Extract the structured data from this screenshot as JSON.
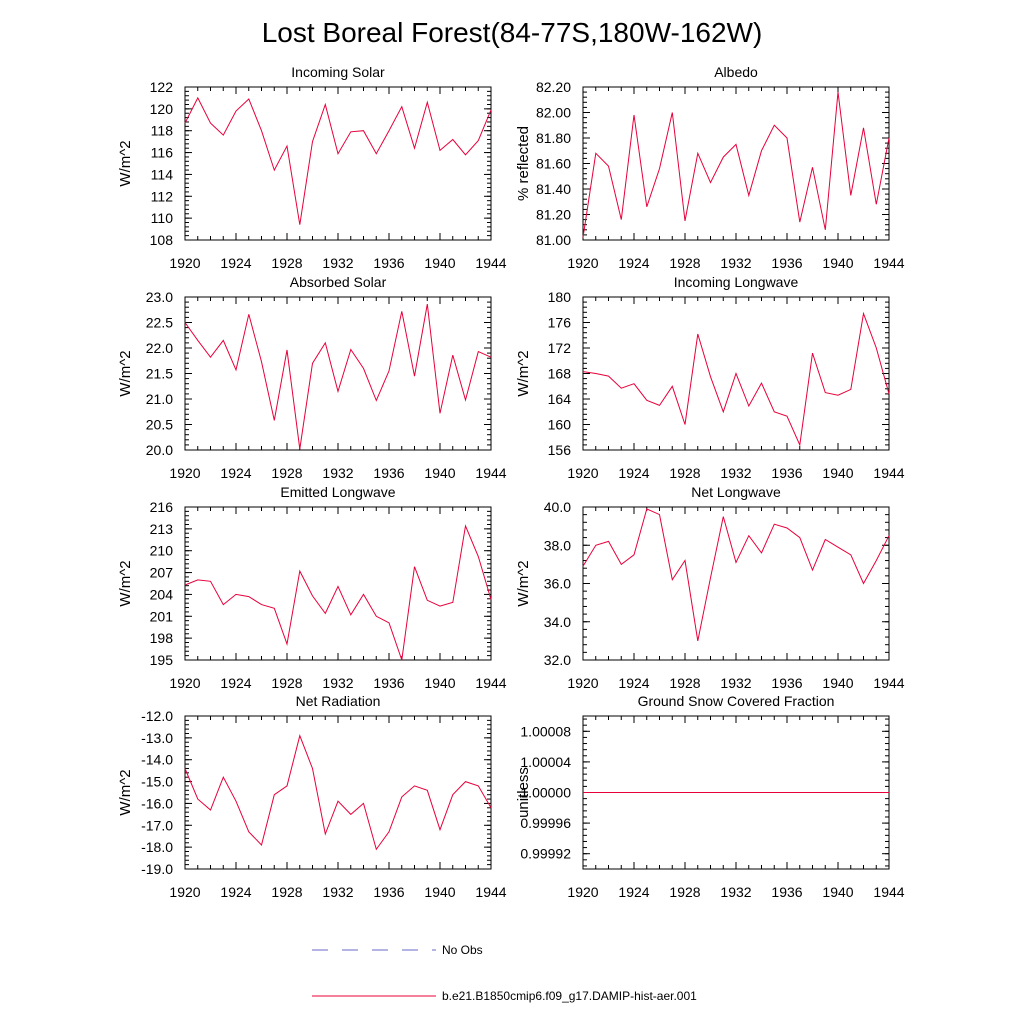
{
  "title": "Lost Boreal Forest(84-77S,180W-162W)",
  "legend": {
    "entries": [
      {
        "label": "No Obs",
        "color": "#6a6ac8",
        "dash": true
      },
      {
        "label": "b.e21.B1850cmip6.f09_g17.DAMIP-hist-aer.001",
        "color": "#e8003a",
        "dash": false
      }
    ]
  },
  "chart_data": [
    {
      "type": "line",
      "title": "Incoming Solar",
      "ylabel": "W/m^2",
      "xlim": [
        1920,
        1944
      ],
      "ylim": [
        108,
        122
      ],
      "yticks": [
        "108",
        "110",
        "112",
        "114",
        "116",
        "118",
        "120",
        "122"
      ],
      "xticks": [
        "1920",
        "1924",
        "1928",
        "1932",
        "1936",
        "1940",
        "1944"
      ],
      "series": [
        {
          "x": [
            1920,
            1921,
            1922,
            1923,
            1924,
            1925,
            1926,
            1927,
            1928,
            1929,
            1930,
            1931,
            1932,
            1933,
            1934,
            1935,
            1936,
            1937,
            1938,
            1939,
            1940,
            1941,
            1942,
            1943,
            1944
          ],
          "values": [
            118.7,
            121.0,
            118.7,
            117.6,
            119.8,
            120.9,
            118.0,
            114.4,
            116.6,
            109.4,
            117.0,
            120.4,
            115.9,
            117.9,
            118.0,
            115.9,
            118.0,
            120.2,
            116.4,
            120.6,
            116.2,
            117.2,
            115.8,
            117.1,
            119.9
          ]
        }
      ]
    },
    {
      "type": "line",
      "title": "Albedo",
      "ylabel": "% reflected",
      "xlim": [
        1920,
        1944
      ],
      "ylim": [
        81.0,
        82.2
      ],
      "yticks": [
        "81.00",
        "81.20",
        "81.40",
        "81.60",
        "81.80",
        "82.00",
        "82.20"
      ],
      "xticks": [
        "1920",
        "1924",
        "1928",
        "1932",
        "1936",
        "1940",
        "1944"
      ],
      "series": [
        {
          "x": [
            1920,
            1921,
            1922,
            1923,
            1924,
            1925,
            1926,
            1927,
            1928,
            1929,
            1930,
            1931,
            1932,
            1933,
            1934,
            1935,
            1936,
            1937,
            1938,
            1939,
            1940,
            1941,
            1942,
            1943,
            1944
          ],
          "values": [
            81.02,
            81.68,
            81.58,
            81.16,
            81.98,
            81.26,
            81.56,
            82.0,
            81.15,
            81.68,
            81.45,
            81.65,
            81.75,
            81.35,
            81.7,
            81.9,
            81.8,
            81.14,
            81.57,
            81.08,
            82.16,
            81.35,
            81.88,
            81.28,
            81.8
          ]
        }
      ]
    },
    {
      "type": "line",
      "title": "Absorbed Solar",
      "ylabel": "W/m^2",
      "xlim": [
        1920,
        1944
      ],
      "ylim": [
        20.0,
        23.0
      ],
      "yticks": [
        "20.0",
        "20.5",
        "21.0",
        "21.5",
        "22.0",
        "22.5",
        "23.0"
      ],
      "xticks": [
        "1920",
        "1924",
        "1928",
        "1932",
        "1936",
        "1940",
        "1944"
      ],
      "series": [
        {
          "x": [
            1920,
            1921,
            1922,
            1923,
            1924,
            1925,
            1926,
            1927,
            1928,
            1929,
            1930,
            1931,
            1932,
            1933,
            1934,
            1935,
            1936,
            1937,
            1938,
            1939,
            1940,
            1941,
            1942,
            1943,
            1944
          ],
          "values": [
            22.5,
            22.15,
            21.82,
            22.15,
            21.57,
            22.66,
            21.73,
            20.58,
            21.96,
            20.02,
            21.7,
            22.1,
            21.15,
            21.97,
            21.6,
            20.97,
            21.55,
            22.72,
            21.45,
            22.86,
            20.72,
            21.86,
            20.98,
            21.93,
            21.82
          ]
        }
      ]
    },
    {
      "type": "line",
      "title": "Incoming Longwave",
      "ylabel": "W/m^2",
      "xlim": [
        1920,
        1944
      ],
      "ylim": [
        156,
        180
      ],
      "yticks": [
        "156",
        "160",
        "164",
        "168",
        "172",
        "176",
        "180"
      ],
      "xticks": [
        "1920",
        "1924",
        "1928",
        "1932",
        "1936",
        "1940",
        "1944"
      ],
      "series": [
        {
          "x": [
            1920,
            1921,
            1922,
            1923,
            1924,
            1925,
            1926,
            1927,
            1928,
            1929,
            1930,
            1931,
            1932,
            1933,
            1934,
            1935,
            1936,
            1937,
            1938,
            1939,
            1940,
            1941,
            1942,
            1943,
            1944
          ],
          "values": [
            168.3,
            168.0,
            167.6,
            165.7,
            166.4,
            163.8,
            163.0,
            166.0,
            160.0,
            174.2,
            167.5,
            162.0,
            168.0,
            162.9,
            166.5,
            162.0,
            161.3,
            156.8,
            171.2,
            165.0,
            164.6,
            165.5,
            177.4,
            172.0,
            164.8
          ]
        }
      ]
    },
    {
      "type": "line",
      "title": "Emitted Longwave",
      "ylabel": "W/m^2",
      "xlim": [
        1920,
        1944
      ],
      "ylim": [
        195,
        216
      ],
      "yticks": [
        "195",
        "198",
        "201",
        "204",
        "207",
        "210",
        "213",
        "216"
      ],
      "xticks": [
        "1920",
        "1924",
        "1928",
        "1932",
        "1936",
        "1940",
        "1944"
      ],
      "series": [
        {
          "x": [
            1920,
            1921,
            1922,
            1923,
            1924,
            1925,
            1926,
            1927,
            1928,
            1929,
            1930,
            1931,
            1932,
            1933,
            1934,
            1935,
            1936,
            1937,
            1938,
            1939,
            1940,
            1941,
            1942,
            1943,
            1944
          ],
          "values": [
            205.3,
            206.0,
            205.8,
            202.6,
            204.0,
            203.7,
            202.6,
            202.1,
            197.2,
            207.2,
            203.8,
            201.4,
            205.1,
            201.2,
            204.0,
            201.0,
            200.1,
            195.0,
            207.8,
            203.2,
            202.4,
            202.9,
            213.4,
            209.2,
            203.3
          ]
        }
      ]
    },
    {
      "type": "line",
      "title": "Net Longwave",
      "ylabel": "W/m^2",
      "xlim": [
        1920,
        1944
      ],
      "ylim": [
        32.0,
        40.0
      ],
      "yticks": [
        "32.0",
        "34.0",
        "36.0",
        "38.0",
        "40.0"
      ],
      "xticks": [
        "1920",
        "1924",
        "1928",
        "1932",
        "1936",
        "1940",
        "1944"
      ],
      "series": [
        {
          "x": [
            1920,
            1921,
            1922,
            1923,
            1924,
            1925,
            1926,
            1927,
            1928,
            1929,
            1930,
            1931,
            1932,
            1933,
            1934,
            1935,
            1936,
            1937,
            1938,
            1939,
            1940,
            1941,
            1942,
            1943,
            1944
          ],
          "values": [
            36.9,
            38.0,
            38.2,
            37.0,
            37.5,
            39.9,
            39.6,
            36.2,
            37.2,
            33.0,
            36.3,
            39.5,
            37.1,
            38.5,
            37.6,
            39.1,
            38.9,
            38.4,
            36.7,
            38.3,
            37.9,
            37.5,
            36.0,
            37.2,
            38.5
          ]
        }
      ]
    },
    {
      "type": "line",
      "title": "Net Radiation",
      "ylabel": "W/m^2",
      "xlim": [
        1920,
        1944
      ],
      "ylim": [
        -19.0,
        -12.0
      ],
      "yticks": [
        "-19.0",
        "-18.0",
        "-17.0",
        "-16.0",
        "-15.0",
        "-14.0",
        "-13.0",
        "-12.0"
      ],
      "xticks": [
        "1920",
        "1924",
        "1928",
        "1932",
        "1936",
        "1940",
        "1944"
      ],
      "series": [
        {
          "x": [
            1920,
            1921,
            1922,
            1923,
            1924,
            1925,
            1926,
            1927,
            1928,
            1929,
            1930,
            1931,
            1932,
            1933,
            1934,
            1935,
            1936,
            1937,
            1938,
            1939,
            1940,
            1941,
            1942,
            1943,
            1944
          ],
          "values": [
            -14.4,
            -15.8,
            -16.3,
            -14.8,
            -15.9,
            -17.3,
            -17.9,
            -15.6,
            -15.2,
            -12.9,
            -14.4,
            -17.4,
            -15.9,
            -16.5,
            -16.0,
            -18.1,
            -17.3,
            -15.7,
            -15.2,
            -15.4,
            -17.2,
            -15.6,
            -15.0,
            -15.2,
            -16.2
          ]
        }
      ]
    },
    {
      "type": "line",
      "title": "Ground Snow Covered Fraction",
      "ylabel": "unitless",
      "xlim": [
        1920,
        1944
      ],
      "ylim": [
        0.9999,
        1.0001
      ],
      "yticks": [
        "0.99992",
        "0.99996",
        "1.00000",
        "1.00004",
        "1.00008"
      ],
      "xticks": [
        "1920",
        "1924",
        "1928",
        "1932",
        "1936",
        "1940",
        "1944"
      ],
      "series": [
        {
          "x": [
            1920,
            1944
          ],
          "values": [
            1.0,
            1.0
          ]
        }
      ]
    }
  ]
}
